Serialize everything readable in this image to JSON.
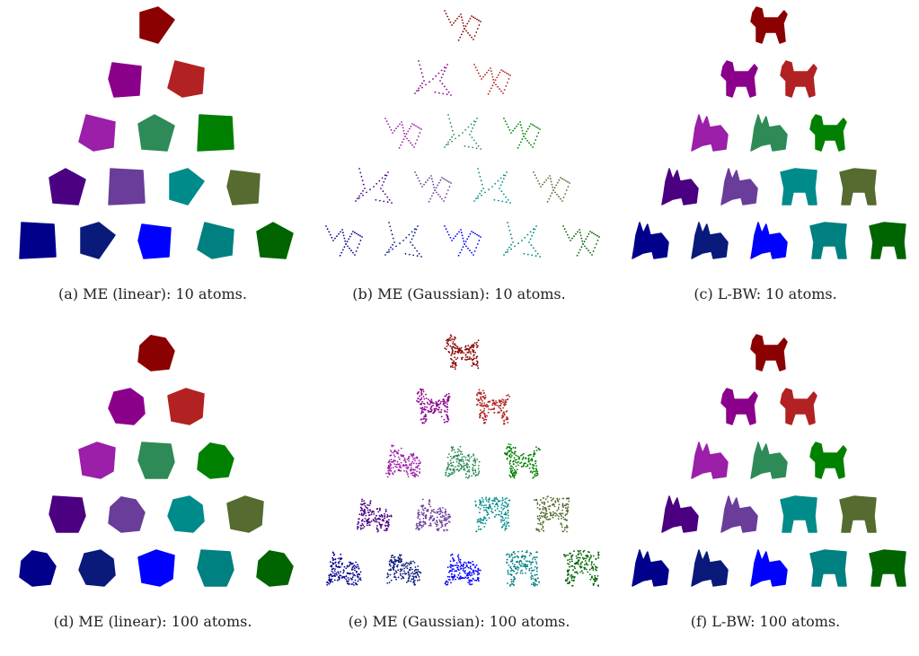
{
  "figure": {
    "panels": [
      {
        "label": "(a)",
        "caption": "(a) ME (linear): 10 atoms.",
        "method": "ME (linear)",
        "atoms": 10,
        "shape_style": "polygon",
        "render": "filled"
      },
      {
        "label": "(b)",
        "caption": "(b) ME (Gaussian): 10 atoms.",
        "method": "ME (Gaussian)",
        "atoms": 10,
        "shape_style": "skeleton",
        "render": "sparse-dots"
      },
      {
        "label": "(c)",
        "caption": "(c) L-BW: 10 atoms.",
        "method": "L-BW",
        "atoms": 10,
        "shape_style": "animal",
        "render": "filled"
      },
      {
        "label": "(d)",
        "caption": "(d) ME (linear): 100 atoms.",
        "method": "ME (linear)",
        "atoms": 100,
        "shape_style": "blob",
        "render": "filled"
      },
      {
        "label": "(e)",
        "caption": "(e) ME (Gaussian): 100 atoms.",
        "method": "ME (Gaussian)",
        "atoms": 100,
        "shape_style": "animal",
        "render": "dense-dots"
      },
      {
        "label": "(f)",
        "caption": "(f) L-BW: 100 atoms.",
        "method": "L-BW",
        "atoms": 100,
        "shape_style": "animal",
        "render": "filled"
      }
    ],
    "row_colors": [
      [
        "#8b0000"
      ],
      [
        "#8b008b",
        "#b22222"
      ],
      [
        "#9b1fa8",
        "#2e8b57",
        "#008000"
      ],
      [
        "#4b0082",
        "#6a3d9a",
        "#008b8b",
        "#556b2f"
      ],
      [
        "#00008b",
        "#0a1a7a",
        "#0000ff",
        "#008080",
        "#006400"
      ]
    ]
  }
}
